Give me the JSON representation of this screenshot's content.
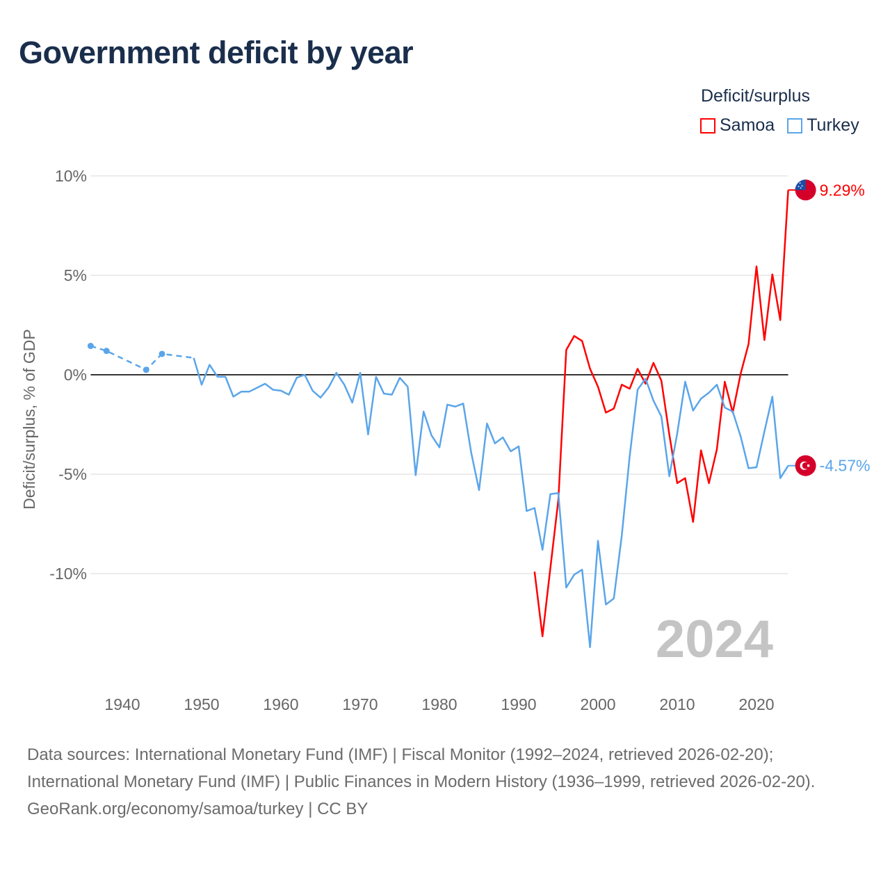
{
  "title": "Government deficit by year",
  "legend": {
    "title": "Deficit/surplus",
    "items": [
      {
        "name": "Samoa",
        "color": "#ff0000"
      },
      {
        "name": "Turkey",
        "color": "#5aa5ea"
      }
    ]
  },
  "watermark_year": "2024",
  "footer": {
    "sources": "Data sources: International Monetary Fund (IMF) | Fiscal Monitor (1992–2024, retrieved 2026-02-20); International Monetary Fund (IMF) | Public Finances in Modern History (1936–1999, retrieved 2026-02-20).",
    "credit": "GeoRank.org/economy/samoa/turkey | CC BY"
  },
  "chart_data": {
    "type": "line",
    "title": "Government deficit by year",
    "xlabel": "",
    "ylabel": "Deficit/surplus, % of GDP",
    "xlim": [
      1936,
      2024
    ],
    "ylim": [
      -14,
      10
    ],
    "x_ticks": [
      "1940",
      "1950",
      "1960",
      "1970",
      "1980",
      "1990",
      "2000",
      "2010",
      "2020"
    ],
    "y_ticks": [
      {
        "v": 10,
        "label": "10%"
      },
      {
        "v": 5,
        "label": "5%"
      },
      {
        "v": 0,
        "label": "0%"
      },
      {
        "v": -5,
        "label": "-5%"
      },
      {
        "v": -10,
        "label": "-10%"
      }
    ],
    "series": [
      {
        "name": "Samoa",
        "color": "#ff0000",
        "end_label": "9.29%",
        "x": [
          1992,
          1993,
          1994,
          1995,
          1996,
          1997,
          1998,
          1999,
          2000,
          2001,
          2002,
          2003,
          2004,
          2005,
          2006,
          2007,
          2008,
          2009,
          2010,
          2011,
          2012,
          2013,
          2014,
          2015,
          2016,
          2017,
          2018,
          2019,
          2020,
          2021,
          2022,
          2023,
          2024
        ],
        "y": [
          -9.9,
          -13.15,
          -9.7,
          -6.3,
          1.25,
          1.95,
          1.7,
          0.3,
          -0.6,
          -1.9,
          -1.7,
          -0.5,
          -0.7,
          0.3,
          -0.45,
          0.6,
          -0.3,
          -3.0,
          -5.45,
          -5.2,
          -7.4,
          -3.8,
          -5.45,
          -3.75,
          -0.35,
          -1.9,
          0.05,
          1.55,
          5.45,
          1.75,
          5.05,
          2.75,
          9.29
        ]
      },
      {
        "name": "Turkey",
        "color": "#5aa5ea",
        "end_label": "-4.57%",
        "dashed_until": 1949,
        "markers": [
          1936,
          1938,
          1943,
          1945
        ],
        "x": [
          1936,
          1938,
          1943,
          1945,
          1949,
          1950,
          1951,
          1952,
          1953,
          1954,
          1955,
          1956,
          1957,
          1958,
          1959,
          1960,
          1961,
          1962,
          1963,
          1964,
          1965,
          1966,
          1967,
          1968,
          1969,
          1970,
          1971,
          1972,
          1973,
          1974,
          1975,
          1976,
          1977,
          1978,
          1979,
          1980,
          1981,
          1982,
          1983,
          1984,
          1985,
          1986,
          1987,
          1988,
          1989,
          1990,
          1991,
          1992,
          1993,
          1994,
          1995,
          1996,
          1997,
          1998,
          1999,
          2000,
          2001,
          2002,
          2003,
          2004,
          2005,
          2006,
          2007,
          2008,
          2009,
          2010,
          2011,
          2012,
          2013,
          2014,
          2015,
          2016,
          2017,
          2018,
          2019,
          2020,
          2021,
          2022,
          2023,
          2024
        ],
        "y": [
          1.45,
          1.2,
          0.25,
          1.05,
          0.85,
          -0.5,
          0.5,
          -0.1,
          -0.1,
          -1.1,
          -0.85,
          -0.85,
          -0.65,
          -0.45,
          -0.75,
          -0.8,
          -1.0,
          -0.15,
          0.0,
          -0.8,
          -1.15,
          -0.65,
          0.1,
          -0.5,
          -1.4,
          0.1,
          -3.0,
          -0.1,
          -0.95,
          -1.0,
          -0.15,
          -0.6,
          -5.05,
          -1.85,
          -3.05,
          -3.65,
          -1.5,
          -1.6,
          -1.45,
          -3.9,
          -5.8,
          -2.45,
          -3.45,
          -3.15,
          -3.85,
          -3.6,
          -6.85,
          -6.7,
          -8.8,
          -6.0,
          -5.95,
          -10.7,
          -10.05,
          -9.8,
          -13.7,
          -8.35,
          -11.55,
          -11.25,
          -8.1,
          -4.1,
          -0.75,
          -0.2,
          -1.3,
          -2.1,
          -5.1,
          -2.95,
          -0.35,
          -1.8,
          -1.2,
          -0.9,
          -0.5,
          -1.65,
          -1.85,
          -3.1,
          -4.7,
          -4.65,
          -2.85,
          -1.1,
          -5.2,
          -4.57
        ]
      }
    ]
  }
}
